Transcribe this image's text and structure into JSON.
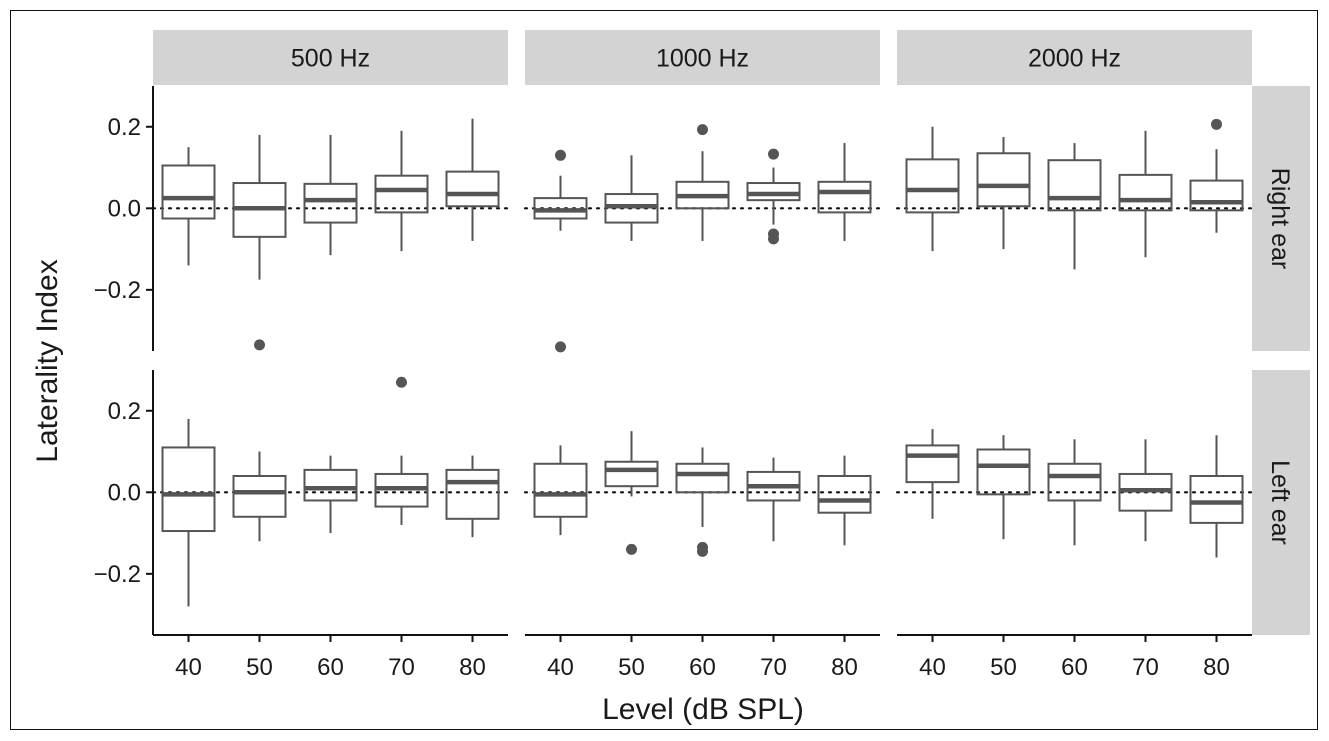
{
  "chart_data": {
    "type": "boxplot",
    "xlabel": "Level (dB SPL)",
    "ylabel": "Laterality Index",
    "ylim": [
      -0.35,
      0.3
    ],
    "yticks": [
      -0.2,
      0.0,
      0.2
    ],
    "ytick_labels": [
      "−0.2",
      "0.0",
      "0.2"
    ],
    "categories": [
      40,
      50,
      60,
      70,
      80
    ],
    "category_labels": [
      "40",
      "50",
      "60",
      "70",
      "80"
    ],
    "reference_line": 0.0,
    "columns": [
      "500 Hz",
      "1000 Hz",
      "2000 Hz"
    ],
    "rows": [
      "Right ear",
      "Left ear"
    ],
    "panels": [
      {
        "row": "Right ear",
        "column": "500 Hz",
        "boxes": [
          {
            "level": 40,
            "lo": -0.14,
            "q1": -0.025,
            "med": 0.025,
            "q3": 0.105,
            "hi": 0.15,
            "outliers": []
          },
          {
            "level": 50,
            "lo": -0.175,
            "q1": -0.07,
            "med": 0.0,
            "q3": 0.062,
            "hi": 0.18,
            "outliers": [
              -0.335
            ]
          },
          {
            "level": 60,
            "lo": -0.115,
            "q1": -0.035,
            "med": 0.02,
            "q3": 0.06,
            "hi": 0.18,
            "outliers": []
          },
          {
            "level": 70,
            "lo": -0.105,
            "q1": -0.01,
            "med": 0.045,
            "q3": 0.08,
            "hi": 0.19,
            "outliers": []
          },
          {
            "level": 80,
            "lo": -0.08,
            "q1": 0.005,
            "med": 0.035,
            "q3": 0.09,
            "hi": 0.22,
            "outliers": []
          }
        ]
      },
      {
        "row": "Right ear",
        "column": "1000 Hz",
        "boxes": [
          {
            "level": 40,
            "lo": -0.055,
            "q1": -0.025,
            "med": -0.005,
            "q3": 0.025,
            "hi": 0.08,
            "outliers": [
              0.13,
              -0.34
            ]
          },
          {
            "level": 50,
            "lo": -0.08,
            "q1": -0.035,
            "med": 0.005,
            "q3": 0.035,
            "hi": 0.13,
            "outliers": []
          },
          {
            "level": 60,
            "lo": -0.08,
            "q1": 0.0,
            "med": 0.03,
            "q3": 0.065,
            "hi": 0.14,
            "outliers": [
              0.193
            ]
          },
          {
            "level": 70,
            "lo": -0.04,
            "q1": 0.02,
            "med": 0.035,
            "q3": 0.062,
            "hi": 0.1,
            "outliers": [
              0.133,
              -0.063,
              -0.075
            ]
          },
          {
            "level": 80,
            "lo": -0.08,
            "q1": -0.01,
            "med": 0.04,
            "q3": 0.065,
            "hi": 0.16,
            "outliers": []
          }
        ]
      },
      {
        "row": "Right ear",
        "column": "2000 Hz",
        "boxes": [
          {
            "level": 40,
            "lo": -0.105,
            "q1": -0.01,
            "med": 0.045,
            "q3": 0.12,
            "hi": 0.2,
            "outliers": []
          },
          {
            "level": 50,
            "lo": -0.1,
            "q1": 0.005,
            "med": 0.055,
            "q3": 0.135,
            "hi": 0.175,
            "outliers": []
          },
          {
            "level": 60,
            "lo": -0.15,
            "q1": -0.005,
            "med": 0.025,
            "q3": 0.118,
            "hi": 0.16,
            "outliers": []
          },
          {
            "level": 70,
            "lo": -0.12,
            "q1": -0.005,
            "med": 0.02,
            "q3": 0.082,
            "hi": 0.19,
            "outliers": []
          },
          {
            "level": 80,
            "lo": -0.06,
            "q1": -0.005,
            "med": 0.015,
            "q3": 0.068,
            "hi": 0.145,
            "outliers": [
              0.206
            ]
          }
        ]
      },
      {
        "row": "Left ear",
        "column": "500 Hz",
        "boxes": [
          {
            "level": 40,
            "lo": -0.28,
            "q1": -0.095,
            "med": -0.005,
            "q3": 0.11,
            "hi": 0.18,
            "outliers": []
          },
          {
            "level": 50,
            "lo": -0.12,
            "q1": -0.06,
            "med": 0.0,
            "q3": 0.04,
            "hi": 0.1,
            "outliers": []
          },
          {
            "level": 60,
            "lo": -0.1,
            "q1": -0.02,
            "med": 0.01,
            "q3": 0.055,
            "hi": 0.09,
            "outliers": []
          },
          {
            "level": 70,
            "lo": -0.08,
            "q1": -0.035,
            "med": 0.01,
            "q3": 0.045,
            "hi": 0.09,
            "outliers": [
              0.27
            ]
          },
          {
            "level": 80,
            "lo": -0.11,
            "q1": -0.065,
            "med": 0.025,
            "q3": 0.055,
            "hi": 0.09,
            "outliers": []
          }
        ]
      },
      {
        "row": "Left ear",
        "column": "1000 Hz",
        "boxes": [
          {
            "level": 40,
            "lo": -0.105,
            "q1": -0.06,
            "med": -0.005,
            "q3": 0.07,
            "hi": 0.115,
            "outliers": []
          },
          {
            "level": 50,
            "lo": -0.01,
            "q1": 0.015,
            "med": 0.055,
            "q3": 0.075,
            "hi": 0.15,
            "outliers": [
              -0.14
            ]
          },
          {
            "level": 60,
            "lo": -0.085,
            "q1": 0.0,
            "med": 0.045,
            "q3": 0.07,
            "hi": 0.11,
            "outliers": [
              -0.135,
              -0.145
            ]
          },
          {
            "level": 70,
            "lo": -0.12,
            "q1": -0.02,
            "med": 0.015,
            "q3": 0.05,
            "hi": 0.085,
            "outliers": []
          },
          {
            "level": 80,
            "lo": -0.13,
            "q1": -0.05,
            "med": -0.02,
            "q3": 0.04,
            "hi": 0.09,
            "outliers": []
          }
        ]
      },
      {
        "row": "Left ear",
        "column": "2000 Hz",
        "boxes": [
          {
            "level": 40,
            "lo": -0.065,
            "q1": 0.025,
            "med": 0.09,
            "q3": 0.115,
            "hi": 0.155,
            "outliers": []
          },
          {
            "level": 50,
            "lo": -0.115,
            "q1": -0.005,
            "med": 0.065,
            "q3": 0.105,
            "hi": 0.14,
            "outliers": []
          },
          {
            "level": 60,
            "lo": -0.13,
            "q1": -0.02,
            "med": 0.04,
            "q3": 0.07,
            "hi": 0.13,
            "outliers": []
          },
          {
            "level": 70,
            "lo": -0.12,
            "q1": -0.045,
            "med": 0.005,
            "q3": 0.045,
            "hi": 0.13,
            "outliers": []
          },
          {
            "level": 80,
            "lo": -0.16,
            "q1": -0.075,
            "med": -0.025,
            "q3": 0.04,
            "hi": 0.14,
            "outliers": []
          }
        ]
      }
    ]
  },
  "colors": {
    "box_stroke": "#555555",
    "median": "#555555",
    "outlier": "#555555",
    "strip_background": "#d3d3d3",
    "axis": "#111111"
  }
}
